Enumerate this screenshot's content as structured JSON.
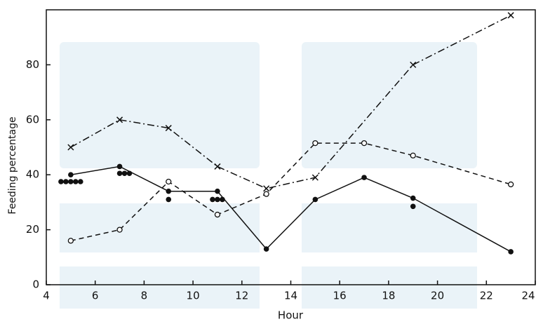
{
  "chart_data": {
    "type": "line",
    "x_label": "Hour",
    "y_label": "Feeding percentage",
    "xlim": [
      4,
      24
    ],
    "xticks": [
      4,
      6,
      8,
      10,
      12,
      14,
      16,
      18,
      20,
      22,
      24
    ],
    "ylim": [
      0,
      100
    ],
    "yticks": [
      0,
      20,
      40,
      60,
      80
    ],
    "grid": false,
    "series": [
      {
        "color": "#111111",
        "marker": "x",
        "dash": "10 4 2 4",
        "x": [
          5,
          7,
          9,
          11,
          13,
          15,
          19,
          23
        ],
        "values": [
          50,
          60,
          57,
          43,
          35,
          39,
          80,
          98
        ]
      },
      {
        "color": "#111111",
        "marker": "open-circle",
        "dash": "7 5",
        "x": [
          5,
          7,
          9,
          11,
          13,
          15,
          17,
          19,
          23
        ],
        "values": [
          16,
          20,
          37.5,
          25.5,
          33,
          51.5,
          51.5,
          47,
          36.5
        ]
      },
      {
        "color": "#111111",
        "marker": "dot",
        "dash": "none",
        "x": [
          5,
          7,
          9,
          11,
          13,
          15,
          17,
          19,
          23
        ],
        "values": [
          40,
          43,
          34,
          34,
          13,
          31,
          39,
          31.5,
          12
        ]
      },
      {
        "color": "#111111",
        "marker": "dot",
        "dash": "points-only",
        "x": [
          4.6,
          4.8,
          5.0,
          5.2,
          5.4,
          7.0,
          7.2,
          7.4,
          9.0,
          10.8,
          11.0,
          11.2,
          19.0
        ],
        "values": [
          37.5,
          37.5,
          37.5,
          37.5,
          37.5,
          40.5,
          40.5,
          40.5,
          31,
          31,
          31,
          31,
          28.5
        ]
      }
    ]
  }
}
